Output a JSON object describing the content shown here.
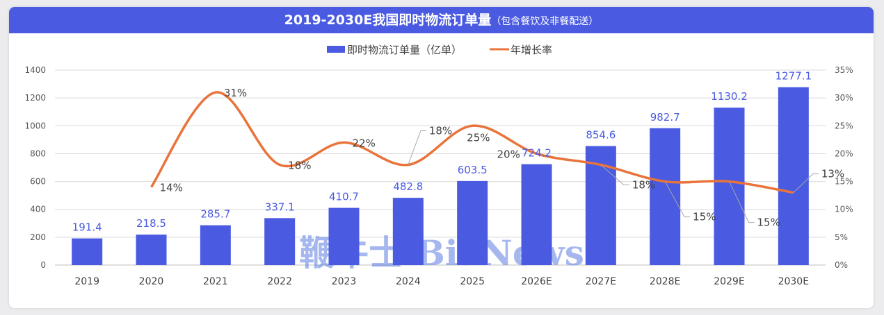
{
  "chart_data": {
    "type": "bar",
    "title": "2019-2030E我国即时物流订单量",
    "subtitle": "（包含餐饮及非餐配送）",
    "categories": [
      "2019",
      "2020",
      "2021",
      "2022",
      "2023",
      "2024",
      "2025",
      "2026E",
      "2027E",
      "2028E",
      "2029E",
      "2030E"
    ],
    "series": [
      {
        "name": "即时物流订单量（亿单）",
        "type": "bar",
        "axis": "left",
        "color": "#4a5be2",
        "values": [
          191.4,
          218.5,
          285.7,
          337.1,
          410.7,
          482.8,
          603.5,
          724.2,
          854.6,
          982.7,
          1130.2,
          1277.1
        ],
        "labels": [
          "191.4",
          "218.5",
          "285.7",
          "337.1",
          "410.7",
          "482.8",
          "603.5",
          "724.2",
          "854.6",
          "982.7",
          "1130.2",
          "1277.1"
        ]
      },
      {
        "name": "年增长率",
        "type": "line",
        "axis": "right",
        "color": "#e8743b",
        "smooth": true,
        "values": [
          null,
          14,
          31,
          18,
          22,
          18,
          25,
          20,
          18,
          15,
          15,
          13
        ],
        "labels": [
          null,
          "14%",
          "31%",
          "18%",
          "22%",
          "18%",
          "25%",
          "20%",
          "18%",
          "15%",
          "15%",
          "13%"
        ]
      }
    ],
    "y_left": {
      "range": [
        0,
        1400
      ],
      "ticks": [
        "0",
        "200",
        "400",
        "600",
        "800",
        "1000",
        "1200",
        "1400"
      ]
    },
    "y_right": {
      "range": [
        0,
        35
      ],
      "ticks": [
        "0%",
        "5%",
        "10%",
        "15%",
        "20%",
        "25%",
        "30%",
        "35%"
      ]
    },
    "grid": true,
    "legend": "top-center",
    "watermark": "鞭牛士 BiaNews"
  }
}
